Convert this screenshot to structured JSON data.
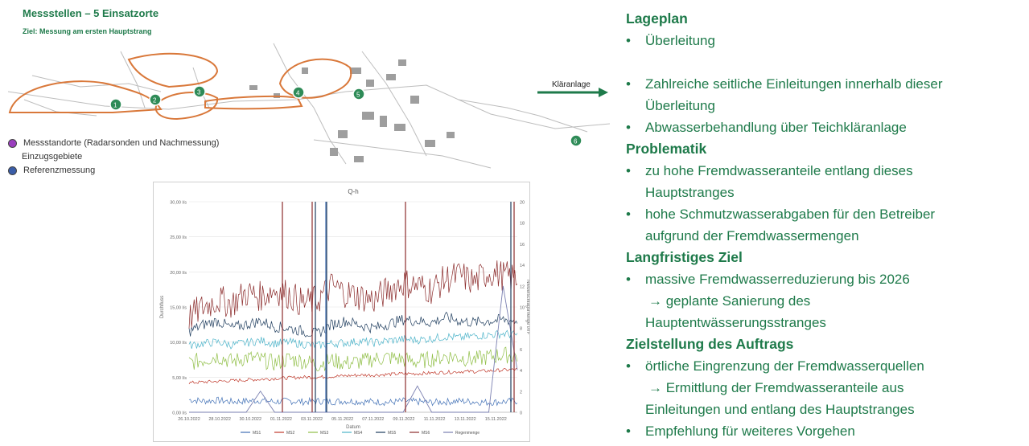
{
  "slide": {
    "title": "Messstellen – 5 Einsatzorte",
    "subtitle": "Ziel: Messung am ersten Hauptstrang"
  },
  "map": {
    "legend": [
      {
        "label": "Messstandorte (Radarsonden und Nachmessung)",
        "color": "#9b3fbf",
        "kind": "dot"
      },
      {
        "label": "Einzugsgebiete",
        "color": "",
        "kind": "none"
      },
      {
        "label": "Referenzmessung",
        "color": "#3a5da8",
        "kind": "dot"
      }
    ],
    "markers": [
      "1",
      "2",
      "3",
      "4",
      "5",
      "6"
    ],
    "arrow_label": "Kläranlage",
    "accent_color": "#1e7a4a",
    "catchment_color": "#d9783a"
  },
  "right_panel": {
    "sections": [
      {
        "heading": "Lageplan",
        "bullets": [
          {
            "text": "Überleitung"
          },
          {
            "text": "",
            "gap": true
          },
          {
            "text": "Zahlreiche seitliche Einleitungen innerhalb dieser",
            "cont": "Überleitung"
          },
          {
            "text": "Abwasserbehandlung über Teichkläranlage"
          }
        ]
      },
      {
        "heading": "Problematik",
        "bullets": [
          {
            "text": "zu hohe Fremdwasseranteile entlang dieses",
            "cont": "Hauptstranges"
          },
          {
            "text": "hohe Schmutzwasserabgaben für den Betreiber",
            "cont": "aufgrund der Fremdwassermengen"
          }
        ]
      },
      {
        "heading": "Langfristiges Ziel",
        "bullets": [
          {
            "text": "massive Fremdwasserreduzierung bis 2026",
            "cont": "→ geplante Sanierung des",
            "cont2": "Hauptentwässerungsstranges"
          }
        ]
      },
      {
        "heading": "Zielstellung des Auftrags",
        "bullets": [
          {
            "text": "örtliche Eingrenzung der Fremdwasserquellen",
            "cont": "→ Ermittlung der Fremdwasseranteile aus",
            "cont2": "Einleitungen und entlang des Hauptstranges"
          },
          {
            "text": "Empfehlung für weiteres Vorgehen"
          }
        ]
      }
    ]
  },
  "chart_data": {
    "type": "line",
    "title": "Q-h",
    "xlabel": "Datum",
    "ylabel": "Durchfluss",
    "y2label": "Niederschlagsmenge l/m²",
    "ylim": [
      0,
      30
    ],
    "y2lim": [
      0,
      20
    ],
    "yticks": [
      "0,00 l/s",
      "5,00 l/s",
      "10,00 l/s",
      "15,00 l/s",
      "20,00 l/s",
      "25,00 l/s",
      "30,00 l/s"
    ],
    "y2ticks": [
      "0",
      "2",
      "4",
      "6",
      "8",
      "10",
      "12",
      "14",
      "16",
      "18",
      "20"
    ],
    "xticks": [
      "26.10.2022",
      "28.10.2022",
      "30.10.2022",
      "01.11.2022",
      "03.11.2022",
      "05.11.2022",
      "07.11.2022",
      "09.11.2022",
      "11.11.2022",
      "13.11.2022",
      "15.11.2022"
    ],
    "grid": true,
    "legend_position": "bottom",
    "series": [
      {
        "name": "MS1",
        "color": "#3f6fb5",
        "axis": "y",
        "values": [
          1.8,
          1.6,
          1.7,
          1.5,
          1.6,
          1.7,
          1.5,
          1.6,
          1.5,
          1.6,
          1.5,
          1.6,
          1.5,
          1.5,
          1.4,
          1.6,
          1.5,
          1.4,
          1.5,
          1.6,
          1.5,
          1.4,
          1.5,
          1.6
        ]
      },
      {
        "name": "MS2",
        "color": "#c0392b",
        "axis": "y",
        "values": [
          4.2,
          4.3,
          4.4,
          4.5,
          4.6,
          4.7,
          4.8,
          4.9,
          5.0,
          5.0,
          5.1,
          5.2,
          5.3,
          5.3,
          5.4,
          5.5,
          5.5,
          5.6,
          5.7,
          5.8,
          5.8,
          5.9,
          6.0,
          6.1
        ]
      },
      {
        "name": "MS3",
        "color": "#8fbe45",
        "axis": "y",
        "values": [
          7.0,
          7.5,
          8.0,
          7.2,
          7.8,
          7.5,
          7.0,
          7.6,
          7.3,
          6.8,
          7.4,
          7.0,
          7.2,
          7.6,
          7.8,
          7.5,
          7.2,
          7.6,
          8.0,
          7.8,
          7.5,
          7.9,
          8.2,
          8.0
        ]
      },
      {
        "name": "MS4",
        "color": "#4bb3c9",
        "axis": "y",
        "values": [
          9.5,
          9.8,
          10.0,
          9.6,
          9.9,
          10.2,
          9.8,
          10.0,
          9.7,
          9.5,
          9.8,
          9.9,
          10.1,
          9.9,
          10.2,
          10.4,
          10.3,
          10.5,
          10.8,
          10.6,
          10.9,
          11.0,
          11.2,
          11.0
        ]
      },
      {
        "name": "MS5",
        "color": "#1f3d5e",
        "axis": "y",
        "values": [
          11.5,
          12.5,
          13.0,
          12.0,
          12.5,
          13.0,
          12.2,
          12.0,
          11.5,
          11.2,
          12.5,
          13.0,
          12.4,
          12.0,
          12.6,
          13.2,
          13.0,
          12.8,
          13.5,
          13.0,
          12.8,
          13.0,
          13.2,
          13.0
        ]
      },
      {
        "name": "MS6",
        "color": "#8b2b2b",
        "axis": "y",
        "values": [
          13.5,
          15.0,
          16.0,
          15.5,
          17.0,
          16.5,
          17.5,
          16.8,
          15.5,
          16.0,
          18.0,
          17.0,
          16.5,
          16.0,
          17.5,
          18.5,
          18.0,
          17.5,
          19.0,
          19.5,
          18.5,
          20.0,
          19.5,
          19.0
        ]
      },
      {
        "name": "Regenmenge",
        "color": "#7a7fb0",
        "axis": "y2",
        "values": [
          0,
          0,
          0,
          0,
          0,
          2,
          0,
          0,
          0,
          0,
          0,
          0,
          0,
          0,
          0,
          0,
          2.5,
          0,
          0,
          0,
          0,
          0,
          12,
          4
        ]
      }
    ]
  }
}
